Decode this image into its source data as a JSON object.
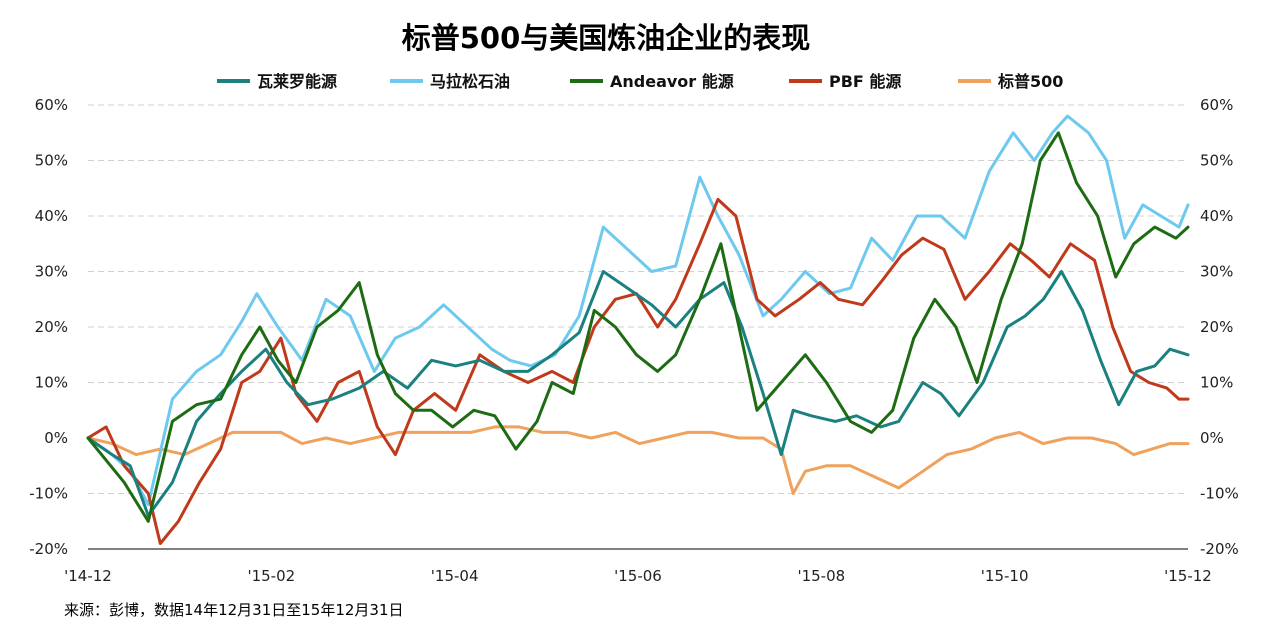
{
  "chart_data": {
    "type": "line",
    "title": "标普500与美国炼油企业的表现",
    "source": "来源：彭博，数据14年12月31日至15年12月31日",
    "x_tick_labels": [
      "'14-12",
      "'15-02",
      "'15-04",
      "'15-06",
      "'15-08",
      "'15-10",
      "'15-12"
    ],
    "x_range": [
      "2014-12-31",
      "2015-12-31"
    ],
    "y_tick_labels": [
      "60%",
      "50%",
      "40%",
      "30%",
      "20%",
      "10%",
      "0%",
      "-10%",
      "-20%"
    ],
    "ylim": [
      -20,
      60
    ],
    "grid": true,
    "legend_position": "top",
    "series": [
      {
        "name": "瓦莱罗能源",
        "color": "#1a8080",
        "points": [
          [
            "2014-12-31",
            0
          ],
          [
            "2015-01-08",
            -3
          ],
          [
            "2015-01-14",
            -5
          ],
          [
            "2015-01-20",
            -14
          ],
          [
            "2015-01-28",
            -8
          ],
          [
            "2015-02-05",
            3
          ],
          [
            "2015-02-13",
            8
          ],
          [
            "2015-02-20",
            12
          ],
          [
            "2015-02-28",
            16
          ],
          [
            "2015-03-07",
            10
          ],
          [
            "2015-03-14",
            6
          ],
          [
            "2015-03-22",
            7
          ],
          [
            "2015-03-31",
            9
          ],
          [
            "2015-04-08",
            12
          ],
          [
            "2015-04-16",
            9
          ],
          [
            "2015-04-24",
            14
          ],
          [
            "2015-05-02",
            13
          ],
          [
            "2015-05-10",
            14
          ],
          [
            "2015-05-18",
            12
          ],
          [
            "2015-05-26",
            12
          ],
          [
            "2015-06-03",
            15
          ],
          [
            "2015-06-12",
            19
          ],
          [
            "2015-06-20",
            30
          ],
          [
            "2015-06-28",
            27
          ],
          [
            "2015-07-06",
            24
          ],
          [
            "2015-07-14",
            20
          ],
          [
            "2015-07-22",
            25
          ],
          [
            "2015-07-30",
            28
          ],
          [
            "2015-08-05",
            20
          ],
          [
            "2015-08-12",
            8
          ],
          [
            "2015-08-18",
            -3
          ],
          [
            "2015-08-22",
            5
          ],
          [
            "2015-08-28",
            4
          ],
          [
            "2015-09-05",
            3
          ],
          [
            "2015-09-12",
            4
          ],
          [
            "2015-09-20",
            2
          ],
          [
            "2015-09-26",
            3
          ],
          [
            "2015-10-04",
            10
          ],
          [
            "2015-10-10",
            8
          ],
          [
            "2015-10-16",
            4
          ],
          [
            "2015-10-24",
            10
          ],
          [
            "2015-11-01",
            20
          ],
          [
            "2015-11-07",
            22
          ],
          [
            "2015-11-13",
            25
          ],
          [
            "2015-11-19",
            30
          ],
          [
            "2015-11-26",
            23
          ],
          [
            "2015-12-02",
            14
          ],
          [
            "2015-12-08",
            6
          ],
          [
            "2015-12-14",
            12
          ],
          [
            "2015-12-20",
            13
          ],
          [
            "2015-12-25",
            16
          ],
          [
            "2015-12-31",
            15
          ]
        ]
      },
      {
        "name": "马拉松石油",
        "color": "#6ec9ee",
        "points": [
          [
            "2014-12-31",
            0
          ],
          [
            "2015-01-08",
            -3
          ],
          [
            "2015-01-14",
            -6
          ],
          [
            "2015-01-20",
            -12
          ],
          [
            "2015-01-28",
            7
          ],
          [
            "2015-02-05",
            12
          ],
          [
            "2015-02-13",
            15
          ],
          [
            "2015-02-20",
            21
          ],
          [
            "2015-02-25",
            26
          ],
          [
            "2015-03-04",
            20
          ],
          [
            "2015-03-12",
            14
          ],
          [
            "2015-03-20",
            25
          ],
          [
            "2015-03-28",
            22
          ],
          [
            "2015-04-05",
            12
          ],
          [
            "2015-04-12",
            18
          ],
          [
            "2015-04-20",
            20
          ],
          [
            "2015-04-28",
            24
          ],
          [
            "2015-05-06",
            20
          ],
          [
            "2015-05-14",
            16
          ],
          [
            "2015-05-20",
            14
          ],
          [
            "2015-05-27",
            13
          ],
          [
            "2015-06-04",
            15
          ],
          [
            "2015-06-12",
            22
          ],
          [
            "2015-06-20",
            38
          ],
          [
            "2015-06-28",
            34
          ],
          [
            "2015-07-06",
            30
          ],
          [
            "2015-07-14",
            31
          ],
          [
            "2015-07-22",
            47
          ],
          [
            "2015-07-28",
            40
          ],
          [
            "2015-08-04",
            33
          ],
          [
            "2015-08-12",
            22
          ],
          [
            "2015-08-18",
            25
          ],
          [
            "2015-08-26",
            30
          ],
          [
            "2015-09-03",
            26
          ],
          [
            "2015-09-10",
            27
          ],
          [
            "2015-09-17",
            36
          ],
          [
            "2015-09-24",
            32
          ],
          [
            "2015-10-02",
            40
          ],
          [
            "2015-10-10",
            40
          ],
          [
            "2015-10-18",
            36
          ],
          [
            "2015-10-26",
            48
          ],
          [
            "2015-11-03",
            55
          ],
          [
            "2015-11-10",
            50
          ],
          [
            "2015-11-16",
            55
          ],
          [
            "2015-11-21",
            58
          ],
          [
            "2015-11-28",
            55
          ],
          [
            "2015-12-04",
            50
          ],
          [
            "2015-12-10",
            36
          ],
          [
            "2015-12-16",
            42
          ],
          [
            "2015-12-22",
            40
          ],
          [
            "2015-12-28",
            38
          ],
          [
            "2015-12-31",
            42
          ]
        ]
      },
      {
        "name": "Andeavor 能源",
        "color": "#1d6b12",
        "points": [
          [
            "2014-12-31",
            0
          ],
          [
            "2015-01-06",
            -4
          ],
          [
            "2015-01-12",
            -8
          ],
          [
            "2015-01-20",
            -15
          ],
          [
            "2015-01-28",
            3
          ],
          [
            "2015-02-05",
            6
          ],
          [
            "2015-02-13",
            7
          ],
          [
            "2015-02-20",
            15
          ],
          [
            "2015-02-26",
            20
          ],
          [
            "2015-03-04",
            14
          ],
          [
            "2015-03-10",
            10
          ],
          [
            "2015-03-17",
            20
          ],
          [
            "2015-03-24",
            23
          ],
          [
            "2015-03-31",
            28
          ],
          [
            "2015-04-06",
            15
          ],
          [
            "2015-04-12",
            8
          ],
          [
            "2015-04-18",
            5
          ],
          [
            "2015-04-24",
            5
          ],
          [
            "2015-05-01",
            2
          ],
          [
            "2015-05-08",
            5
          ],
          [
            "2015-05-15",
            4
          ],
          [
            "2015-05-22",
            -2
          ],
          [
            "2015-05-29",
            3
          ],
          [
            "2015-06-03",
            10
          ],
          [
            "2015-06-10",
            8
          ],
          [
            "2015-06-17",
            23
          ],
          [
            "2015-06-24",
            20
          ],
          [
            "2015-07-01",
            15
          ],
          [
            "2015-07-08",
            12
          ],
          [
            "2015-07-14",
            15
          ],
          [
            "2015-07-22",
            25
          ],
          [
            "2015-07-29",
            35
          ],
          [
            "2015-08-04",
            20
          ],
          [
            "2015-08-10",
            5
          ],
          [
            "2015-08-18",
            10
          ],
          [
            "2015-08-26",
            15
          ],
          [
            "2015-09-02",
            10
          ],
          [
            "2015-09-10",
            3
          ],
          [
            "2015-09-17",
            1
          ],
          [
            "2015-09-24",
            5
          ],
          [
            "2015-10-01",
            18
          ],
          [
            "2015-10-08",
            25
          ],
          [
            "2015-10-15",
            20
          ],
          [
            "2015-10-22",
            10
          ],
          [
            "2015-10-30",
            25
          ],
          [
            "2015-11-06",
            35
          ],
          [
            "2015-11-12",
            50
          ],
          [
            "2015-11-18",
            55
          ],
          [
            "2015-11-24",
            46
          ],
          [
            "2015-12-01",
            40
          ],
          [
            "2015-12-07",
            29
          ],
          [
            "2015-12-13",
            35
          ],
          [
            "2015-12-20",
            38
          ],
          [
            "2015-12-27",
            36
          ],
          [
            "2015-12-31",
            38
          ]
        ]
      },
      {
        "name": "PBF 能源",
        "color": "#c0391b",
        "points": [
          [
            "2014-12-31",
            0
          ],
          [
            "2015-01-06",
            2
          ],
          [
            "2015-01-12",
            -5
          ],
          [
            "2015-01-20",
            -10
          ],
          [
            "2015-01-24",
            -19
          ],
          [
            "2015-01-30",
            -15
          ],
          [
            "2015-02-06",
            -8
          ],
          [
            "2015-02-13",
            -2
          ],
          [
            "2015-02-20",
            10
          ],
          [
            "2015-02-26",
            12
          ],
          [
            "2015-03-05",
            18
          ],
          [
            "2015-03-10",
            8
          ],
          [
            "2015-03-17",
            3
          ],
          [
            "2015-03-24",
            10
          ],
          [
            "2015-03-31",
            12
          ],
          [
            "2015-04-06",
            2
          ],
          [
            "2015-04-12",
            -3
          ],
          [
            "2015-04-18",
            5
          ],
          [
            "2015-04-25",
            8
          ],
          [
            "2015-05-02",
            5
          ],
          [
            "2015-05-10",
            15
          ],
          [
            "2015-05-18",
            12
          ],
          [
            "2015-05-26",
            10
          ],
          [
            "2015-06-03",
            12
          ],
          [
            "2015-06-10",
            10
          ],
          [
            "2015-06-17",
            20
          ],
          [
            "2015-06-24",
            25
          ],
          [
            "2015-07-01",
            26
          ],
          [
            "2015-07-08",
            20
          ],
          [
            "2015-07-14",
            25
          ],
          [
            "2015-07-22",
            35
          ],
          [
            "2015-07-28",
            43
          ],
          [
            "2015-08-03",
            40
          ],
          [
            "2015-08-10",
            25
          ],
          [
            "2015-08-16",
            22
          ],
          [
            "2015-08-24",
            25
          ],
          [
            "2015-08-31",
            28
          ],
          [
            "2015-09-06",
            25
          ],
          [
            "2015-09-14",
            24
          ],
          [
            "2015-09-20",
            28
          ],
          [
            "2015-09-27",
            33
          ],
          [
            "2015-10-04",
            36
          ],
          [
            "2015-10-11",
            34
          ],
          [
            "2015-10-18",
            25
          ],
          [
            "2015-10-26",
            30
          ],
          [
            "2015-11-02",
            35
          ],
          [
            "2015-11-09",
            32
          ],
          [
            "2015-11-15",
            29
          ],
          [
            "2015-11-22",
            35
          ],
          [
            "2015-11-30",
            32
          ],
          [
            "2015-12-06",
            20
          ],
          [
            "2015-12-12",
            12
          ],
          [
            "2015-12-18",
            10
          ],
          [
            "2015-12-24",
            9
          ],
          [
            "2015-12-28",
            7
          ],
          [
            "2015-12-31",
            7
          ]
        ]
      },
      {
        "name": "标普500",
        "color": "#f0a15c",
        "points": [
          [
            "2014-12-31",
            0
          ],
          [
            "2015-01-08",
            -1
          ],
          [
            "2015-01-16",
            -3
          ],
          [
            "2015-01-24",
            -2
          ],
          [
            "2015-02-01",
            -3
          ],
          [
            "2015-02-09",
            -1
          ],
          [
            "2015-02-17",
            1
          ],
          [
            "2015-02-25",
            1
          ],
          [
            "2015-03-05",
            1
          ],
          [
            "2015-03-12",
            -1
          ],
          [
            "2015-03-20",
            0
          ],
          [
            "2015-03-28",
            -1
          ],
          [
            "2015-04-05",
            0
          ],
          [
            "2015-04-13",
            1
          ],
          [
            "2015-04-21",
            1
          ],
          [
            "2015-04-29",
            1
          ],
          [
            "2015-05-07",
            1
          ],
          [
            "2015-05-15",
            2
          ],
          [
            "2015-05-23",
            2
          ],
          [
            "2015-05-31",
            1
          ],
          [
            "2015-06-08",
            1
          ],
          [
            "2015-06-16",
            0
          ],
          [
            "2015-06-24",
            1
          ],
          [
            "2015-07-02",
            -1
          ],
          [
            "2015-07-10",
            0
          ],
          [
            "2015-07-18",
            1
          ],
          [
            "2015-07-26",
            1
          ],
          [
            "2015-08-04",
            0
          ],
          [
            "2015-08-12",
            0
          ],
          [
            "2015-08-18",
            -2
          ],
          [
            "2015-08-22",
            -10
          ],
          [
            "2015-08-26",
            -6
          ],
          [
            "2015-09-02",
            -5
          ],
          [
            "2015-09-10",
            -5
          ],
          [
            "2015-09-18",
            -7
          ],
          [
            "2015-09-26",
            -9
          ],
          [
            "2015-10-04",
            -6
          ],
          [
            "2015-10-12",
            -3
          ],
          [
            "2015-10-20",
            -2
          ],
          [
            "2015-10-28",
            0
          ],
          [
            "2015-11-05",
            1
          ],
          [
            "2015-11-13",
            -1
          ],
          [
            "2015-11-21",
            0
          ],
          [
            "2015-11-29",
            0
          ],
          [
            "2015-12-07",
            -1
          ],
          [
            "2015-12-13",
            -3
          ],
          [
            "2015-12-19",
            -2
          ],
          [
            "2015-12-25",
            -1
          ],
          [
            "2015-12-31",
            -1
          ]
        ]
      }
    ]
  }
}
